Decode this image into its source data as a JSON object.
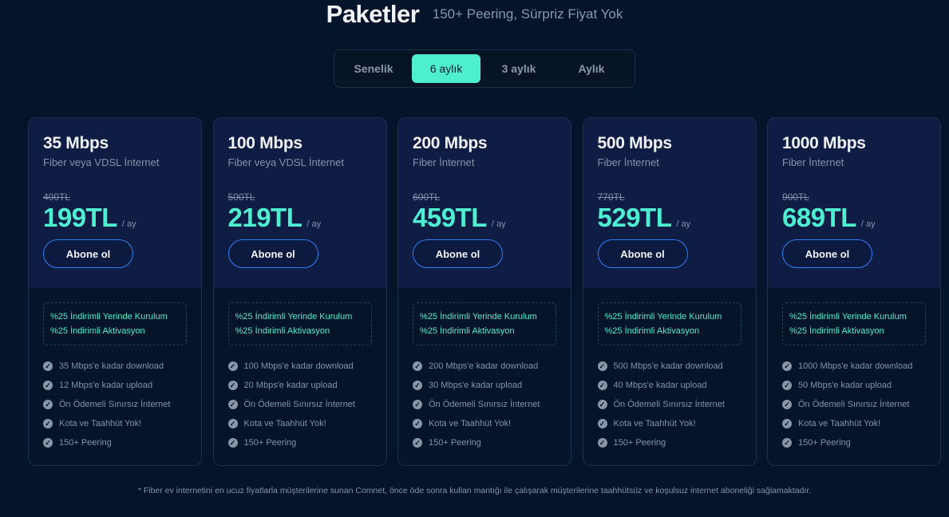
{
  "header": {
    "title": "Paketler",
    "subtitle": "150+ Peering, Sürpriz Fiyat Yok"
  },
  "period_tabs": [
    {
      "label": "Senelik",
      "active": false
    },
    {
      "label": "6 aylık",
      "active": true
    },
    {
      "label": "3 aylık",
      "active": false
    },
    {
      "label": "Aylık",
      "active": false
    }
  ],
  "colors": {
    "accent": "#4eeed0",
    "button_border": "#2d7ff5",
    "background": "#04152b",
    "card_top": "#0f1d45"
  },
  "plans": [
    {
      "speed": "35 Mbps",
      "type": "Fiber veya VDSL İnternet",
      "old_price": "400TL",
      "price": "199TL",
      "per": "/ ay",
      "button": "Abone ol",
      "promos": [
        "%25 İndirimli Yerinde Kurulum",
        "%25 İndirimli Aktivasyon"
      ],
      "features": [
        "35 Mbps'e kadar download",
        "12 Mbps'e kadar upload",
        "Ön Ödemeli Sınırsız İnternet",
        "Kota ve Taahhüt Yok!",
        "150+ Peering"
      ]
    },
    {
      "speed": "100 Mbps",
      "type": "Fiber veya VDSL İnternet",
      "old_price": "500TL",
      "price": "219TL",
      "per": "/ ay",
      "button": "Abone ol",
      "promos": [
        "%25 İndirimli Yerinde Kurulum",
        "%25 İndirimli Aktivasyon"
      ],
      "features": [
        "100 Mbps'e kadar download",
        "20 Mbps'e kadar upload",
        "Ön Ödemeli Sınırsız İnternet",
        "Kota ve Taahhüt Yok!",
        "150+ Peering"
      ]
    },
    {
      "speed": "200 Mbps",
      "type": "Fiber İnternet",
      "old_price": "600TL",
      "price": "459TL",
      "per": "/ ay",
      "button": "Abone ol",
      "promos": [
        "%25 İndirimli Yerinde Kurulum",
        "%25 İndirimli Aktivasyon"
      ],
      "features": [
        "200 Mbps'e kadar download",
        "30 Mbps'e kadar upload",
        "Ön Ödemeli Sınırsız İnternet",
        "Kota ve Taahhüt Yok!",
        "150+ Peering"
      ]
    },
    {
      "speed": "500 Mbps",
      "type": "Fiber İnternet",
      "old_price": "770TL",
      "price": "529TL",
      "per": "/ ay",
      "button": "Abone ol",
      "promos": [
        "%25 İndirimli Yerinde Kurulum",
        "%25 İndirimli Aktivasyon"
      ],
      "features": [
        "500 Mbps'e kadar download",
        "40 Mbps'e kadar upload",
        "Ön Ödemeli Sınırsız İnternet",
        "Kota ve Taahhüt Yok!",
        "150+ Peering"
      ]
    },
    {
      "speed": "1000 Mbps",
      "type": "Fiber İnternet",
      "old_price": "900TL",
      "price": "689TL",
      "per": "/ ay",
      "button": "Abone ol",
      "promos": [
        "%25 İndirimli Yerinde Kurulum",
        "%25 İndirimli Aktivasyon"
      ],
      "features": [
        "1000 Mbps'e kadar download",
        "50 Mbps'e kadar upload",
        "Ön Ödemeli Sınırsız İnternet",
        "Kota ve Taahhüt Yok!",
        "150+ Peering"
      ]
    }
  ],
  "footer": "* Fiber ev internetini en ucuz fiyatlarla müşterilerine sunan Comnet, önce öde sonra kullan mantığı ile çalışarak müşterilerine taahhütsüz ve koşulsuz internet aboneliği sağlamaktadır."
}
